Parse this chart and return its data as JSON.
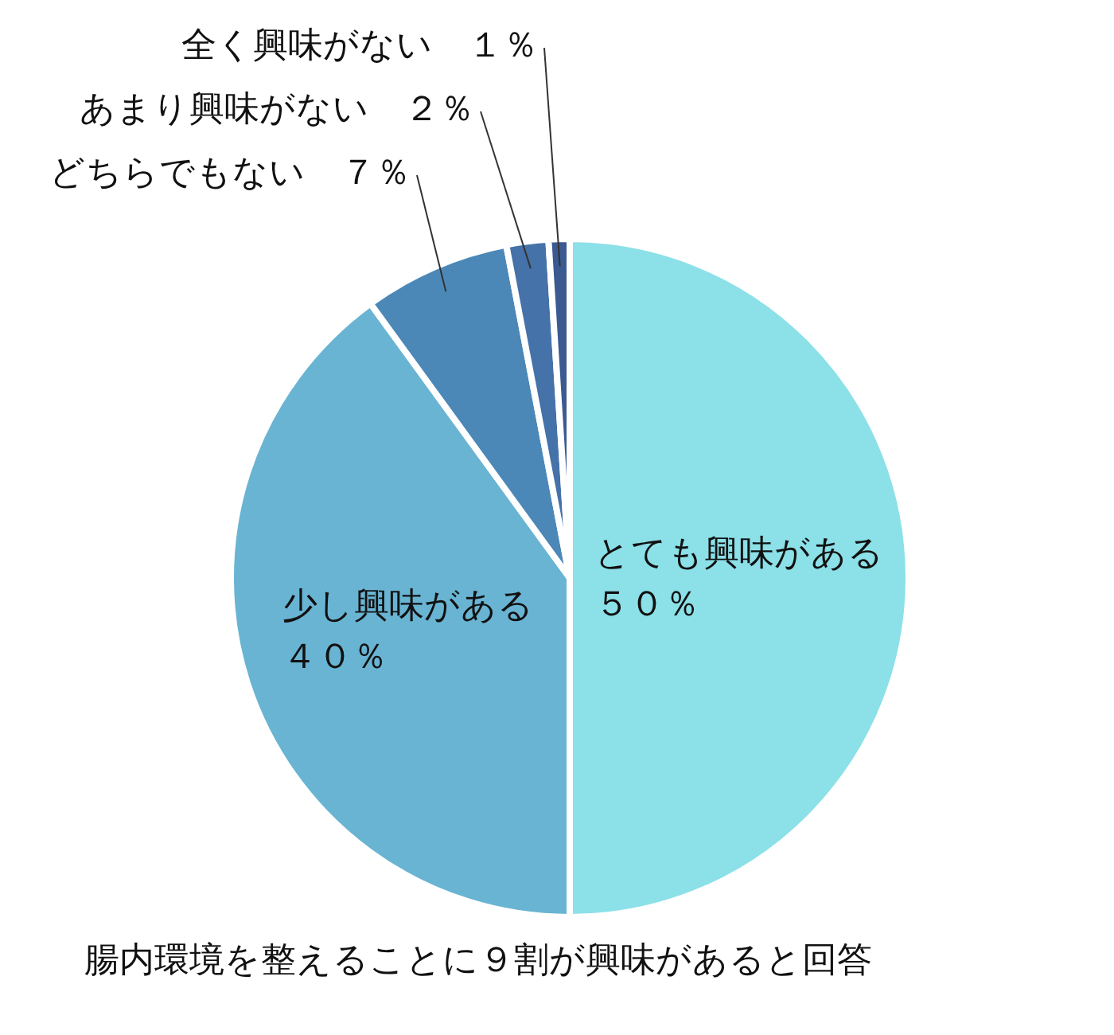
{
  "chart_data": {
    "type": "pie",
    "categories": [
      "とても興味がある",
      "少し興味がある",
      "どちらでもない",
      "あまり興味がない",
      "全く興味がない"
    ],
    "values": [
      50,
      40,
      7,
      2,
      1
    ],
    "value_labels": [
      "５０％",
      "４０％",
      "７％",
      "２％",
      "１％"
    ],
    "colors": [
      "#8ce0e8",
      "#69b4d3",
      "#4b88b8",
      "#4572a8",
      "#3b5a92"
    ],
    "annotations": [
      "腸内環境を整えることに９割が興味があると回答"
    ],
    "legend": false
  }
}
